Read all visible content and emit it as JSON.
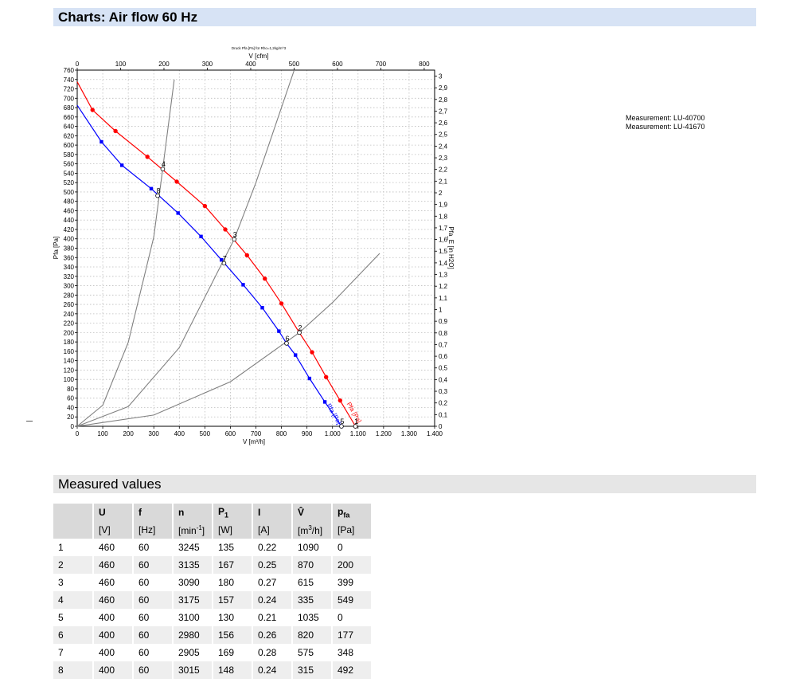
{
  "header": {
    "title": "Charts: Air flow 60 Hz"
  },
  "measurement_note": [
    "Measurement: LU-40700",
    "Measurement: LU-41670"
  ],
  "chart_data": {
    "type": "line",
    "title": "Druck Pfa [Pa] für Rho=1,2kg/m^3",
    "xlabel": "V [m³/h]",
    "x2label": "V [cfm]",
    "ylabel": "Pfa [Pa]",
    "y2label": "Pfa_E [in H2O]",
    "xlim": [
      0,
      1400
    ],
    "ylim": [
      0,
      760
    ],
    "x2lim": [
      0,
      800
    ],
    "y2lim": [
      0,
      3.0
    ],
    "x_ticks": [
      "0",
      "100",
      "200",
      "300",
      "400",
      "500",
      "600",
      "700",
      "800",
      "900",
      "1.000",
      "1.100",
      "1.200",
      "1.300",
      "1.400"
    ],
    "x2_ticks": [
      "0",
      "100",
      "200",
      "300",
      "400",
      "500",
      "600",
      "700",
      "800"
    ],
    "y_ticks": [
      "0",
      "20",
      "40",
      "60",
      "80",
      "100",
      "120",
      "140",
      "160",
      "180",
      "200",
      "220",
      "240",
      "260",
      "280",
      "300",
      "320",
      "340",
      "360",
      "380",
      "400",
      "420",
      "440",
      "460",
      "480",
      "500",
      "520",
      "540",
      "560",
      "580",
      "600",
      "620",
      "640",
      "660",
      "680",
      "700",
      "720",
      "740",
      "760"
    ],
    "y2_ticks": [
      "0",
      "0,1",
      "0,2",
      "0,3",
      "0,4",
      "0,5",
      "0,6",
      "0,7",
      "0,8",
      "0,9",
      "1",
      "1,1",
      "1,2",
      "1,3",
      "1,4",
      "1,5",
      "1,6",
      "1,7",
      "1,8",
      "1,9",
      "2",
      "2,1",
      "2,2",
      "2,3",
      "2,4",
      "2,5",
      "2,6",
      "2,7",
      "2,8",
      "2,9",
      "3"
    ],
    "grid": true,
    "series": [
      {
        "name": "Pfa [Pa]",
        "color": "#ff0000",
        "x": [
          0,
          60,
          150,
          275,
          390,
          500,
          580,
          665,
          735,
          800,
          870,
          920,
          975,
          1030,
          1090
        ],
        "y": [
          735,
          675,
          630,
          575,
          522,
          470,
          420,
          365,
          315,
          262,
          200,
          158,
          105,
          55,
          0
        ]
      },
      {
        "name": "Pfa [Pa]",
        "color": "#0000ff",
        "x": [
          0,
          95,
          175,
          290,
          395,
          485,
          565,
          650,
          725,
          790,
          820,
          855,
          910,
          970,
          1035
        ],
        "y": [
          685,
          607,
          557,
          507,
          455,
          405,
          355,
          302,
          253,
          203,
          177,
          152,
          102,
          52,
          0
        ]
      },
      {
        "name": "",
        "color": "#808080",
        "x": [
          0,
          100,
          200,
          300,
          335,
          380
        ],
        "y": [
          0,
          45,
          179,
          404,
          549,
          740
        ]
      },
      {
        "name": "",
        "color": "#808080",
        "x": [
          0,
          200,
          400,
          615,
          700,
          850
        ],
        "y": [
          0,
          42,
          168,
          399,
          520,
          760
        ]
      },
      {
        "name": "",
        "color": "#808080",
        "x": [
          0,
          300,
          600,
          870,
          1000,
          1185
        ],
        "y": [
          0,
          24,
          95,
          200,
          264,
          369
        ]
      }
    ],
    "point_labels": [
      {
        "label": "1",
        "x": 1090,
        "y": 0
      },
      {
        "label": "2",
        "x": 870,
        "y": 200
      },
      {
        "label": "3",
        "x": 615,
        "y": 399
      },
      {
        "label": "4",
        "x": 335,
        "y": 549
      },
      {
        "label": "5",
        "x": 1035,
        "y": 0
      },
      {
        "label": "6",
        "x": 820,
        "y": 177
      },
      {
        "label": "7",
        "x": 575,
        "y": 348
      },
      {
        "label": "8",
        "x": 315,
        "y": 492
      }
    ]
  },
  "measured": {
    "title": "Measured values",
    "headers": [
      "",
      "U",
      "f",
      "n",
      "P1",
      "I",
      "V̂",
      "pfa"
    ],
    "units": [
      "",
      "[V]",
      "[Hz]",
      "[min-1]",
      "[W]",
      "[A]",
      "[m³/h]",
      "[Pa]"
    ],
    "rows": [
      [
        "1",
        "460",
        "60",
        "3245",
        "135",
        "0.22",
        "1090",
        "0"
      ],
      [
        "2",
        "460",
        "60",
        "3135",
        "167",
        "0.25",
        "870",
        "200"
      ],
      [
        "3",
        "460",
        "60",
        "3090",
        "180",
        "0.27",
        "615",
        "399"
      ],
      [
        "4",
        "460",
        "60",
        "3175",
        "157",
        "0.24",
        "335",
        "549"
      ],
      [
        "5",
        "400",
        "60",
        "3100",
        "130",
        "0.21",
        "1035",
        "0"
      ],
      [
        "6",
        "400",
        "60",
        "2980",
        "156",
        "0.26",
        "820",
        "177"
      ],
      [
        "7",
        "400",
        "60",
        "2905",
        "169",
        "0.28",
        "575",
        "348"
      ],
      [
        "8",
        "400",
        "60",
        "3015",
        "148",
        "0.24",
        "315",
        "492"
      ]
    ]
  }
}
